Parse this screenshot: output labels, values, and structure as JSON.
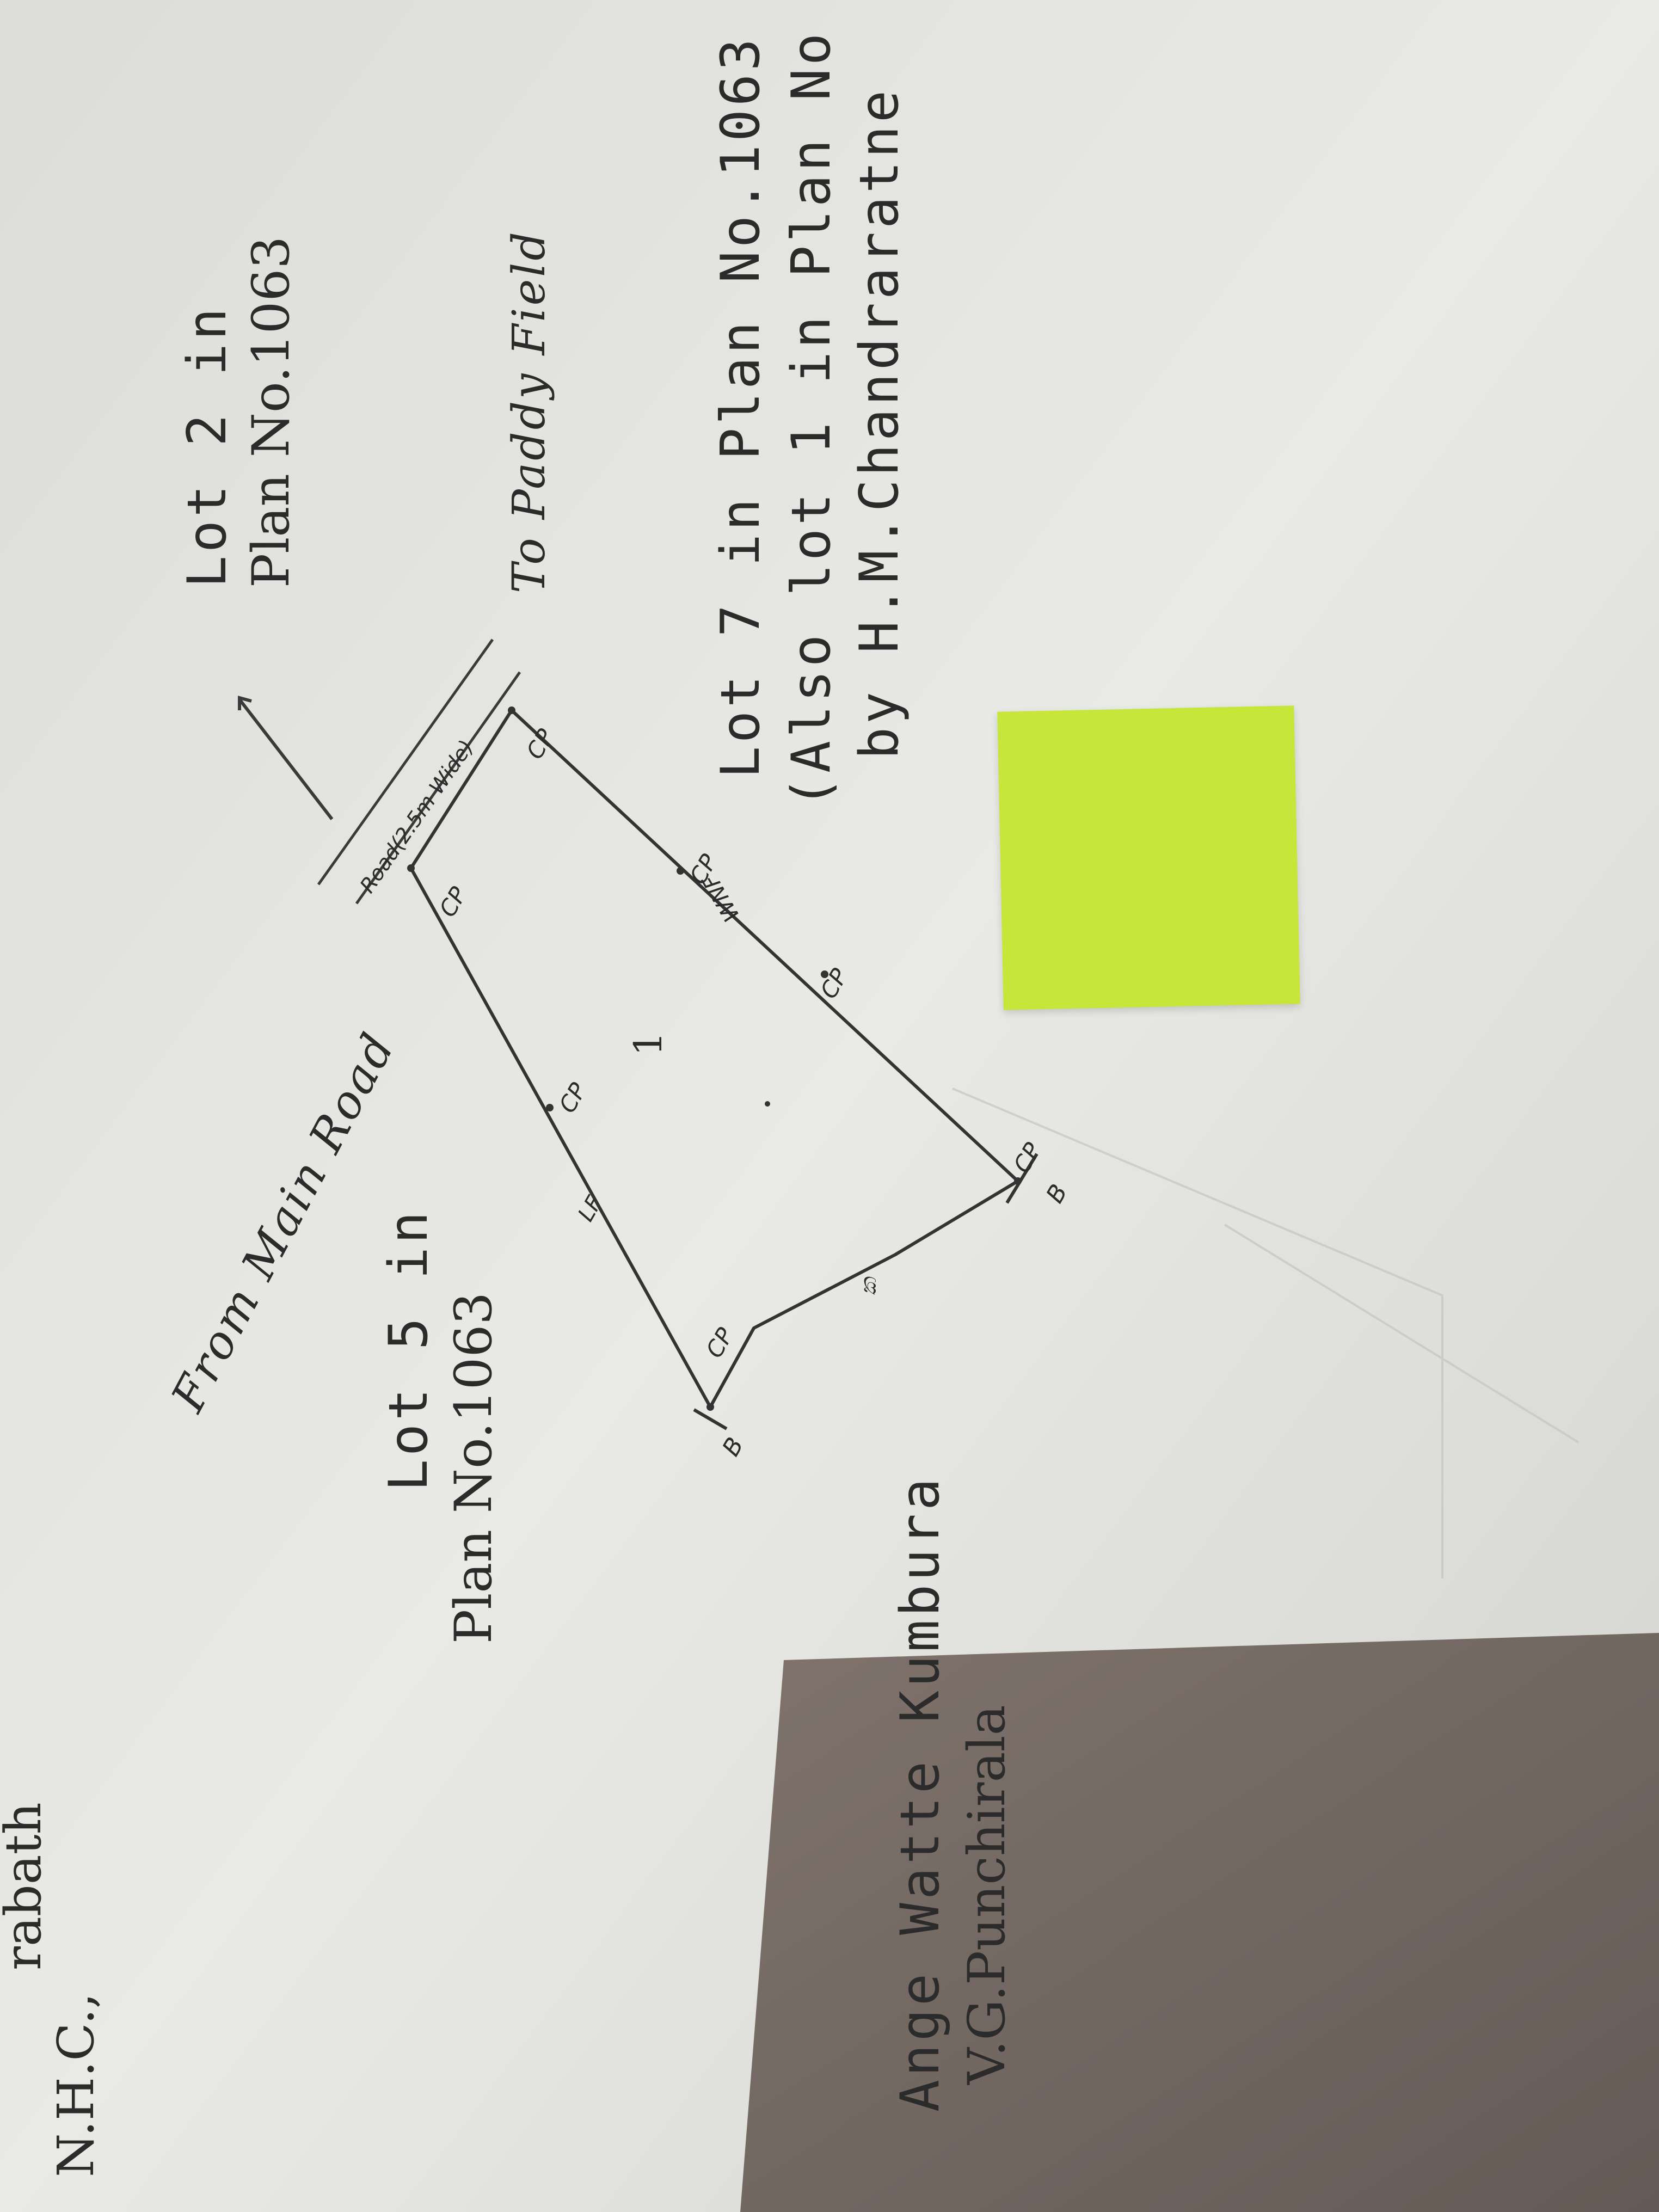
{
  "header": {
    "line_cut": "rabath",
    "line_nhc": "N.H.C.,"
  },
  "labels": {
    "lot2_line1": "Lot 2 in",
    "lot2_line2": "Plan No.1063",
    "from_main_road": "From Main Road",
    "to_paddy_field": "To Paddy Field",
    "lot5_line1": "Lot 5 in",
    "lot5_line2": "Plan No.1063",
    "lot7_line1": "Lot 7 in Plan No.1063",
    "lot7_line2": "(Also lot 1 in Plan No",
    "lot7_line3": "by H.M.Chandraratne",
    "ange_watte": "Ange Watte Kumbura",
    "punchirala": "V.G.Punchirala"
  },
  "plan": {
    "lot_number": "1",
    "road_label": "Road(2.5m Wide)",
    "control_point": "CP",
    "boundary_mark": "B",
    "fence_lf": "LF",
    "fence_wnf": "WNF",
    "sinhala_mark": "ක"
  },
  "colors": {
    "paper": "#e8e8e4",
    "ink": "#2b2b2b",
    "sticky_note": "#c6e63a",
    "shadow": "#6f625c"
  }
}
